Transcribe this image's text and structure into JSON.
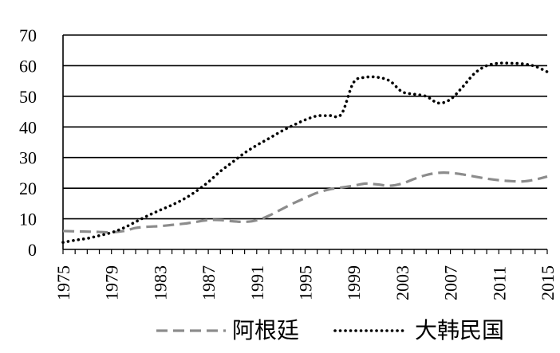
{
  "chart_data": {
    "type": "line",
    "title": "",
    "xlabel": "",
    "ylabel": "",
    "x": [
      1975,
      1976,
      1977,
      1978,
      1979,
      1980,
      1981,
      1982,
      1983,
      1984,
      1985,
      1986,
      1987,
      1988,
      1989,
      1990,
      1991,
      1992,
      1993,
      1994,
      1995,
      1996,
      1997,
      1998,
      1999,
      2000,
      2001,
      2002,
      2003,
      2004,
      2005,
      2006,
      2007,
      2008,
      2009,
      2010,
      2011,
      2012,
      2013,
      2014,
      2015
    ],
    "x_ticks": [
      "1975",
      "1979",
      "1983",
      "1987",
      "1991",
      "1995",
      "1999",
      "2003",
      "2007",
      "2011",
      "2015"
    ],
    "ylim": [
      0,
      70
    ],
    "y_ticks": [
      "0",
      "10",
      "20",
      "30",
      "40",
      "50",
      "60",
      "70"
    ],
    "grid": "horizontal",
    "legend_position": "bottom",
    "series": [
      {
        "name": "阿根廷",
        "style": "dashed",
        "color": "#8c8c8c",
        "values": [
          6,
          5.9,
          5.8,
          5.7,
          5.6,
          6,
          7,
          7.4,
          7.6,
          8,
          8.4,
          9,
          9.6,
          9.6,
          9.2,
          9,
          9.5,
          11,
          13,
          15,
          16.8,
          18.5,
          19.6,
          20.2,
          20.8,
          21.5,
          21.2,
          20.8,
          21.5,
          23,
          24.3,
          25,
          25,
          24.5,
          23.8,
          23.1,
          22.6,
          22.3,
          22.2,
          22.8,
          23.8
        ]
      },
      {
        "name": "大韩民国",
        "style": "dotted",
        "color": "#000000",
        "values": [
          2.3,
          3,
          3.6,
          4.5,
          5.5,
          7,
          9,
          11,
          12.8,
          14.5,
          16.5,
          19,
          22,
          25.5,
          28.5,
          31.5,
          34,
          36.2,
          38.5,
          40.5,
          42.3,
          43.6,
          43.7,
          44.2,
          54.5,
          56.2,
          56.2,
          55,
          51.5,
          50.7,
          50,
          47.8,
          49,
          53,
          57.5,
          60,
          60.8,
          60.8,
          60.6,
          59.8,
          58
        ]
      }
    ]
  },
  "colors": {
    "axis": "#000000",
    "grid": "#000000"
  }
}
